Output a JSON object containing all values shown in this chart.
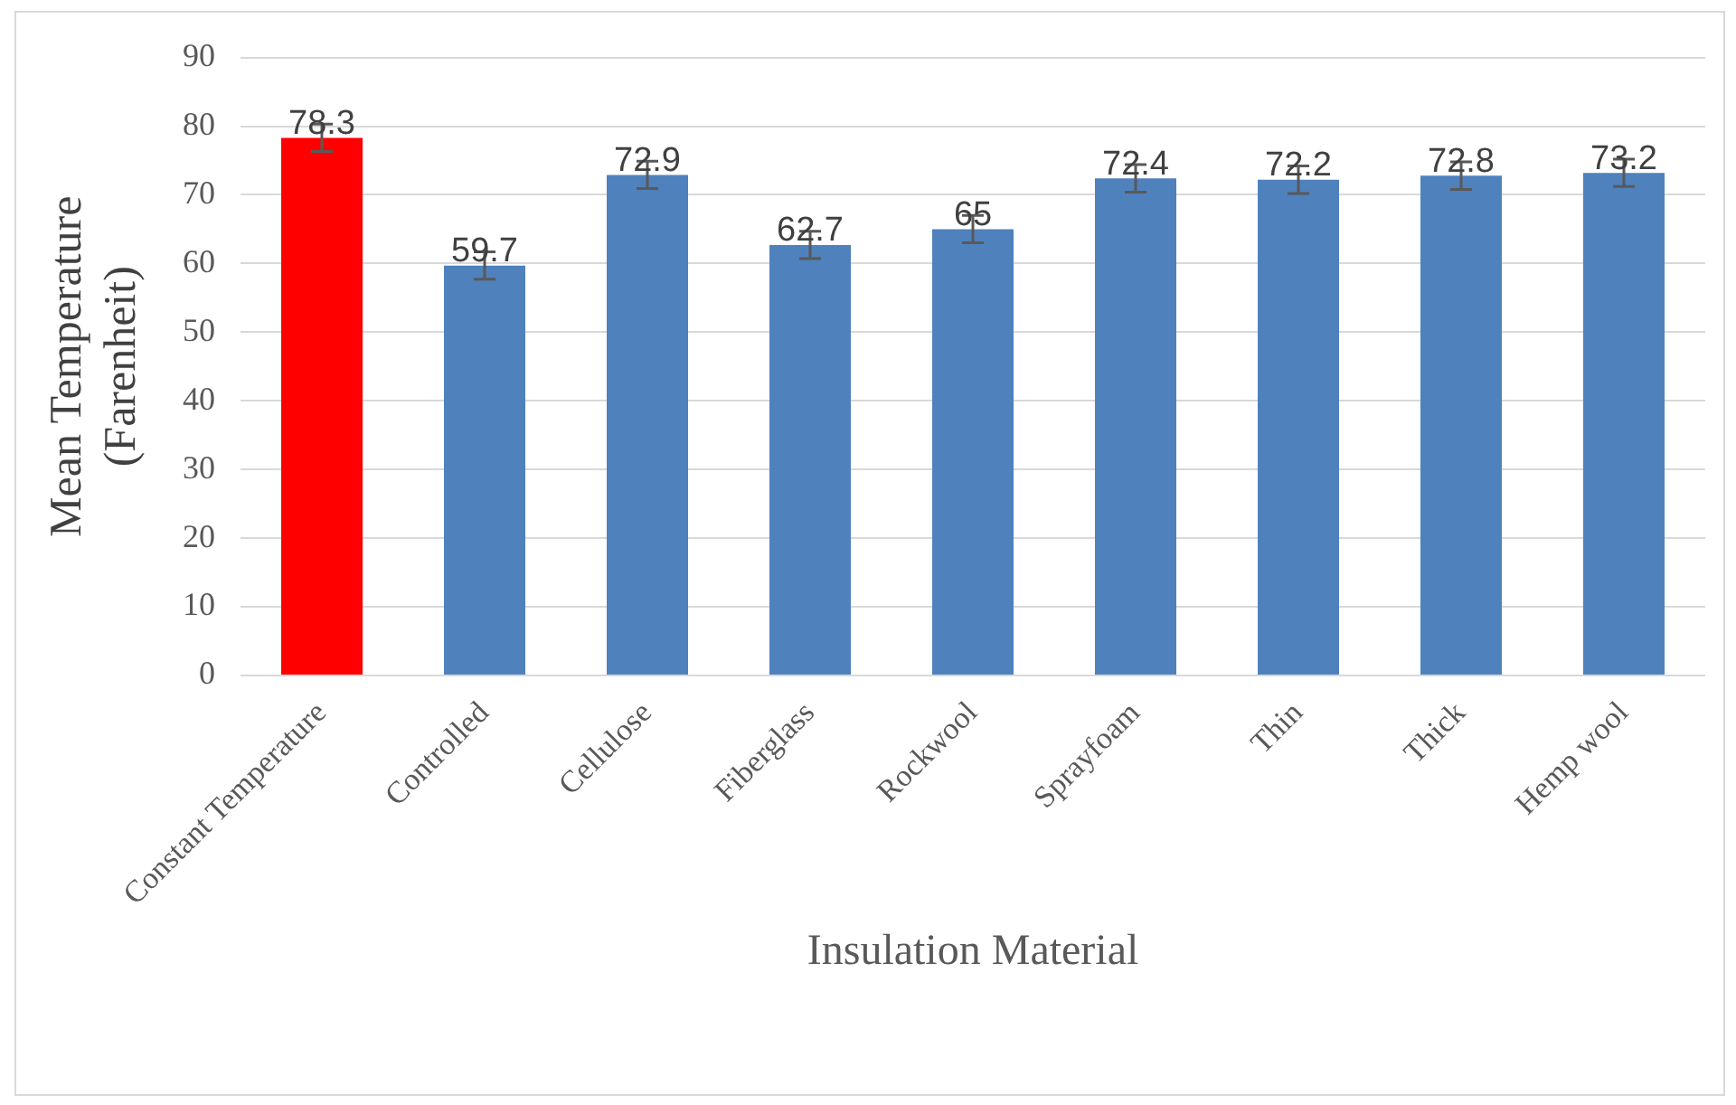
{
  "chart_data": {
    "type": "bar",
    "xlabel": "Insulation Material",
    "ylabel": "Mean Temperature\n(Farenheit)",
    "categories": [
      "Constant Temperature",
      "Controlled",
      "Cellulose",
      "Fiberglass",
      "Rockwool",
      "Sprayfoam",
      "Thin",
      "Thick",
      "Hemp wool"
    ],
    "values": [
      78.3,
      59.7,
      72.9,
      62.7,
      65,
      72.4,
      72.2,
      72.8,
      73.2
    ],
    "colors": [
      "#ff0000",
      "#4f81bd",
      "#4f81bd",
      "#4f81bd",
      "#4f81bd",
      "#4f81bd",
      "#4f81bd",
      "#4f81bd",
      "#4f81bd"
    ],
    "errors": [
      2,
      2,
      2,
      2,
      2,
      2,
      2,
      2,
      2
    ],
    "ylim": [
      0,
      90
    ],
    "yticks": [
      0,
      10,
      20,
      30,
      40,
      50,
      60,
      70,
      80,
      90
    ],
    "grid": "y",
    "data_labels": true,
    "legend": false
  }
}
